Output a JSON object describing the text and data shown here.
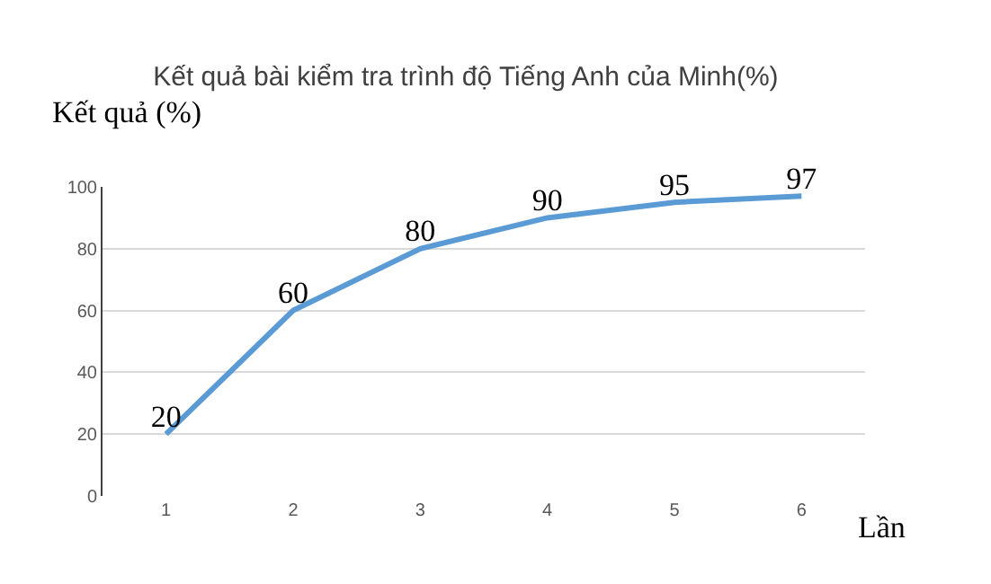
{
  "chart_data": {
    "type": "line",
    "title": "Kết quả bài kiểm tra trình độ Tiếng Anh của Minh(%)",
    "xlabel": "Lần",
    "ylabel": "Kết quả (%)",
    "categories": [
      "1",
      "2",
      "3",
      "4",
      "5",
      "6"
    ],
    "series": [
      {
        "color": "#5b9bd5",
        "values": [
          20,
          60,
          80,
          90,
          95,
          97
        ]
      }
    ],
    "ylim": [
      0,
      100
    ],
    "yticks": [
      0,
      20,
      40,
      60,
      80,
      100
    ],
    "grid": "y",
    "data_labels": true,
    "marker": "none",
    "line_style": "solid"
  }
}
